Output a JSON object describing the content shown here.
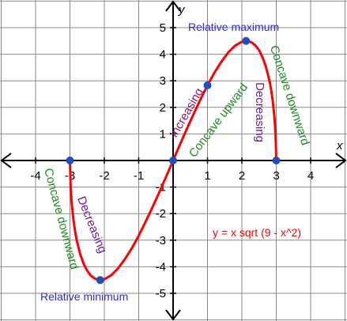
{
  "chart_data": {
    "type": "line",
    "title": "",
    "xlabel": "x",
    "ylabel": "y",
    "xlim": [
      -5,
      5
    ],
    "ylim": [
      -5,
      5
    ],
    "grid": true,
    "x_ticks": [
      {
        "value": -4,
        "label": "-4"
      },
      {
        "value": -3,
        "label": "-3"
      },
      {
        "value": -2,
        "label": "-2"
      },
      {
        "value": -1,
        "label": "-1"
      },
      {
        "value": 1,
        "label": "1"
      },
      {
        "value": 2,
        "label": "2"
      },
      {
        "value": 3,
        "label": "3"
      },
      {
        "value": 4,
        "label": "4"
      }
    ],
    "y_ticks": [
      {
        "value": 5,
        "label": "5"
      },
      {
        "value": 4,
        "label": "4"
      },
      {
        "value": 3,
        "label": "3"
      },
      {
        "value": 2,
        "label": "2"
      },
      {
        "value": 1,
        "label": "1"
      },
      {
        "value": -1,
        "label": "-1"
      },
      {
        "value": -2,
        "label": "-2"
      },
      {
        "value": -3,
        "label": "-3"
      },
      {
        "value": -4,
        "label": "-4"
      },
      {
        "value": -5,
        "label": "-5"
      }
    ],
    "series": [
      {
        "color": "#ff0000",
        "x": [
          -3,
          -2.98,
          -2.95,
          -2.9,
          -2.85,
          -2.8,
          -2.7,
          -2.6,
          -2.5,
          -2.4,
          -2.3,
          -2.2,
          -2.1213,
          -2,
          -1.8,
          -1.6,
          -1.4,
          -1.2,
          -1,
          -0.8,
          -0.6,
          -0.4,
          -0.2,
          0,
          0.2,
          0.4,
          0.6,
          0.8,
          1,
          1.2,
          1.4,
          1.6,
          1.8,
          2,
          2.1213,
          2.2,
          2.3,
          2.4,
          2.5,
          2.6,
          2.7,
          2.8,
          2.85,
          2.9,
          2.95,
          2.98,
          3
        ],
        "y": [
          0,
          -1.03,
          -1.59,
          -2.23,
          -2.67,
          -3.02,
          -3.53,
          -3.89,
          -4.15,
          -4.32,
          -4.43,
          -4.49,
          -4.5,
          -4.47,
          -4.32,
          -4.06,
          -3.71,
          -3.3,
          -2.83,
          -2.31,
          -1.76,
          -1.19,
          -0.6,
          0,
          0.6,
          1.19,
          1.76,
          2.31,
          2.83,
          3.3,
          3.71,
          4.06,
          4.32,
          4.47,
          4.5,
          4.49,
          4.43,
          4.32,
          4.15,
          3.89,
          3.53,
          3.02,
          2.67,
          2.23,
          1.59,
          1.03,
          0
        ]
      }
    ],
    "points": [
      {
        "x": -3,
        "y": 0,
        "color": "#1f4fbf"
      },
      {
        "x": -2.1213,
        "y": -4.5,
        "color": "#1f4fbf"
      },
      {
        "x": 0,
        "y": 0,
        "color": "#1f4fbf"
      },
      {
        "x": 1,
        "y": 2.83,
        "color": "#1f4fbf"
      },
      {
        "x": 2.1213,
        "y": 4.5,
        "color": "#1f4fbf"
      },
      {
        "x": 3,
        "y": 0,
        "color": "#1f4fbf"
      }
    ],
    "annotations": [
      {
        "text": "Relative maximum",
        "color": "#2b2bd6"
      },
      {
        "text": "Relative minimum",
        "color": "#2b2bd6"
      },
      {
        "text": "Increasing",
        "color": "#8b1a6b"
      },
      {
        "text": "Concave upward",
        "color": "#1f8a1f"
      },
      {
        "text": "Decreasing",
        "color": "#6a1b9a"
      },
      {
        "text": "Concave downward",
        "color": "#1f8a1f"
      },
      {
        "text": "Concave downward",
        "color": "#1f8a1f"
      },
      {
        "text": "Decreasing",
        "color": "#6a1b9a"
      },
      {
        "text": "y = x sqrt (9 - x^2)",
        "color": "#ff0000"
      }
    ]
  }
}
